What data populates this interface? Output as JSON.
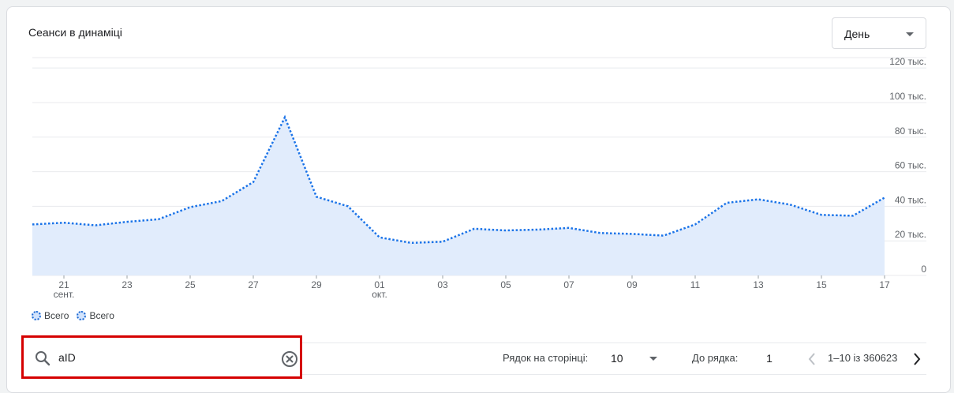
{
  "card": {
    "title": "Сеанси в динаміці",
    "period_select": {
      "value": "День"
    }
  },
  "legend": [
    {
      "label": "Всего"
    },
    {
      "label": "Всего"
    }
  ],
  "table_toolbar": {
    "search": {
      "value": "aID"
    },
    "rows_per_page_label": "Рядок на сторінці:",
    "rows_per_page_value": "10",
    "goto_label": "До рядка:",
    "goto_value": "1",
    "range_text": "1–10 із 360623"
  },
  "chart_data": {
    "type": "area",
    "title": "Сеанси в динаміці",
    "series": [
      {
        "name": "Всего",
        "color": "#1a73e8",
        "fill": "#e1ecfc",
        "values": [
          29500,
          30500,
          29000,
          31000,
          32500,
          39500,
          43000,
          54000,
          91500,
          45500,
          40000,
          22000,
          18800,
          19500,
          27000,
          26000,
          26500,
          27500,
          24500,
          24000,
          23000,
          29500,
          42000,
          44000,
          41000,
          35000,
          34500,
          45000
        ]
      }
    ],
    "x_tick_labels": [
      {
        "index": 1,
        "label": "21",
        "sublabel": "сент."
      },
      {
        "index": 3,
        "label": "23"
      },
      {
        "index": 5,
        "label": "25"
      },
      {
        "index": 7,
        "label": "27"
      },
      {
        "index": 9,
        "label": "29"
      },
      {
        "index": 11,
        "label": "01",
        "sublabel": "окт."
      },
      {
        "index": 13,
        "label": "03"
      },
      {
        "index": 15,
        "label": "05"
      },
      {
        "index": 17,
        "label": "07"
      },
      {
        "index": 19,
        "label": "09"
      },
      {
        "index": 21,
        "label": "11"
      },
      {
        "index": 23,
        "label": "13"
      },
      {
        "index": 25,
        "label": "15"
      },
      {
        "index": 27,
        "label": "17"
      }
    ],
    "y_ticks": [
      {
        "value": 0,
        "label": "0"
      },
      {
        "value": 20000,
        "label": "20 тыс."
      },
      {
        "value": 40000,
        "label": "40 тыс."
      },
      {
        "value": 60000,
        "label": "60 тыс."
      },
      {
        "value": 80000,
        "label": "80 тыс."
      },
      {
        "value": 100000,
        "label": "100 тыс."
      },
      {
        "value": 120000,
        "label": "120 тыс."
      }
    ],
    "ylim": [
      0,
      120000
    ],
    "grid": true,
    "legend_position": "bottom-left"
  }
}
